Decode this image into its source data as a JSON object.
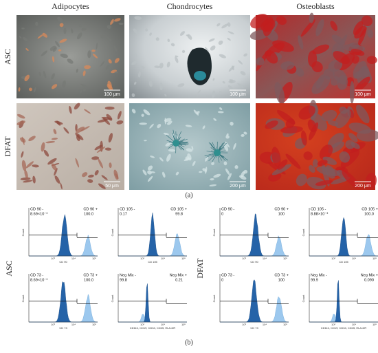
{
  "figure": {
    "columns": [
      "Adipocytes",
      "Chondrocytes",
      "Osteoblasts"
    ],
    "rows": [
      "ASC",
      "DFAT"
    ],
    "scale_bars": [
      [
        "100 μm",
        "100 μm",
        "100 μm"
      ],
      [
        "50 μm",
        "200 μm",
        "200 μm"
      ]
    ],
    "panel_a_label": "(a)",
    "panel_b_label": "(b)"
  },
  "flow": {
    "count_label": "Count",
    "xticks": [
      "10³",
      "10⁴",
      "10⁵"
    ],
    "groups": [
      {
        "name": "ASC",
        "panels": [
          {
            "neg_label": "CD 90 -",
            "neg_value": "8.69×10⁻³",
            "pos_label": "CD 90 +",
            "pos_value": "100.0",
            "x_label": "CD 90"
          },
          {
            "neg_label": "CD 105 -",
            "neg_value": "0.17",
            "pos_label": "CD 105 +",
            "pos_value": "99.8",
            "x_label": "CD 105"
          },
          {
            "neg_label": "CD 73 -",
            "neg_value": "8.69×10⁻³",
            "pos_label": "CD 73 +",
            "pos_value": "100.0",
            "x_label": "CD 73"
          },
          {
            "neg_label": "Neg Mix -",
            "neg_value": "99.8",
            "pos_label": "Neg Mix +",
            "pos_value": "0.21",
            "x_label": "CD11b, CD19, CD34, CD45, HLA-DR"
          }
        ]
      },
      {
        "name": "DFAT",
        "panels": [
          {
            "neg_label": "CD 90 -",
            "neg_value": "0",
            "pos_label": "CD 90 +",
            "pos_value": "100",
            "x_label": "CD 90"
          },
          {
            "neg_label": "CD 105 -",
            "neg_value": "8.88×10⁻³",
            "pos_label": "CD 105 +",
            "pos_value": "100.0",
            "x_label": "CD 105"
          },
          {
            "neg_label": "CD 73 -",
            "neg_value": "0",
            "pos_label": "CD 73 +",
            "pos_value": "100",
            "x_label": "CD 73"
          },
          {
            "neg_label": "Neg Mix -",
            "neg_value": "99.9",
            "pos_label": "Neg Mix +",
            "pos_value": "0.090",
            "x_label": "CD11b, CD19, CD34, CD45, HLA-DR"
          }
        ]
      }
    ]
  }
}
